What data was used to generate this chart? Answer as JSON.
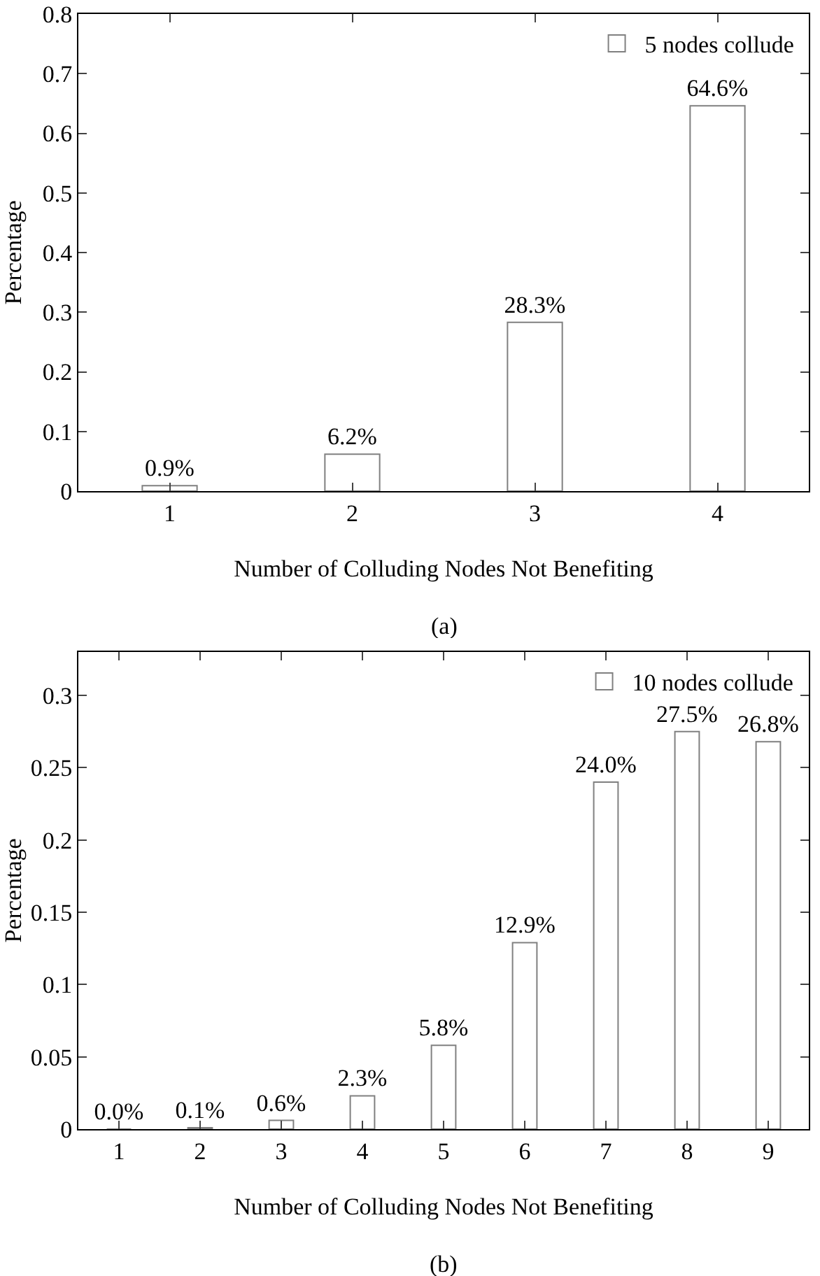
{
  "chart_data": [
    {
      "type": "bar",
      "xlabel": "Number of Colluding Nodes Not Benefiting",
      "ylabel": "Percentage",
      "categories": [
        "1",
        "2",
        "3",
        "4"
      ],
      "series": [
        {
          "name": "5 nodes collude",
          "color": "#808080",
          "values": [
            0.009,
            0.062,
            0.283,
            0.646
          ],
          "value_labels": [
            "0.9%",
            "6.2%",
            "28.3%",
            "64.6%"
          ]
        }
      ],
      "ylim": [
        0,
        0.8
      ],
      "yticks": [
        0,
        0.1,
        0.2,
        0.3,
        0.4,
        0.5,
        0.6,
        0.7,
        0.8
      ],
      "legend": "top right",
      "grid": false,
      "annotations": [
        "(a)"
      ]
    },
    {
      "type": "bar",
      "xlabel": "Number of Colluding Nodes Not Benefiting",
      "ylabel": "Percentage",
      "categories": [
        "1",
        "2",
        "3",
        "4",
        "5",
        "6",
        "7",
        "8",
        "9"
      ],
      "series": [
        {
          "name": "10 nodes collude",
          "color": "#808080",
          "values": [
            0.0,
            0.001,
            0.006,
            0.023,
            0.058,
            0.129,
            0.24,
            0.275,
            0.268
          ],
          "value_labels": [
            "0.0%",
            "0.1%",
            "0.6%",
            "2.3%",
            "5.8%",
            "12.9%",
            "24.0%",
            "27.5%",
            "26.8%"
          ]
        }
      ],
      "ylim": [
        0,
        0.33
      ],
      "yticks": [
        0,
        0.05,
        0.1,
        0.15,
        0.2,
        0.25,
        0.3
      ],
      "legend": "top right",
      "grid": false,
      "annotations": [
        "(b)"
      ]
    }
  ]
}
